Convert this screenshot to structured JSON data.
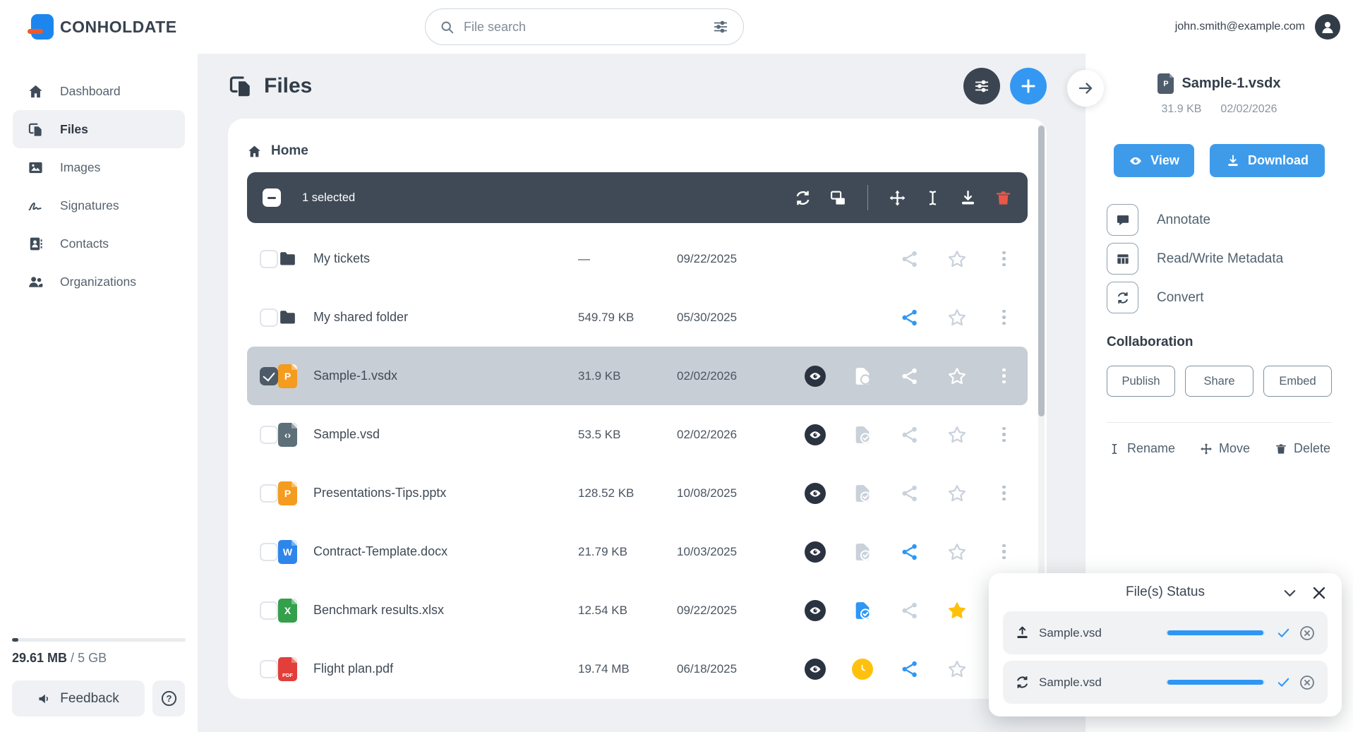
{
  "colors": {
    "accent_blue": "#3498f3",
    "button_blue": "#3e9bea",
    "toolbar_dark": "#3f4a56",
    "selected_row": "#c7ced5",
    "danger_red": "#e8584a",
    "star_yellow": "#ffc107",
    "progress_blue": "#2e96f5"
  },
  "header": {
    "logo_text": "CONHOLDATE",
    "search_placeholder": "File search",
    "user_email": "john.smith@example.com"
  },
  "sidebar": {
    "items": [
      {
        "label": "Dashboard",
        "icon": "home",
        "active": false
      },
      {
        "label": "Files",
        "icon": "files",
        "active": true
      },
      {
        "label": "Images",
        "icon": "images",
        "active": false
      },
      {
        "label": "Signatures",
        "icon": "signatures",
        "active": false
      },
      {
        "label": "Contacts",
        "icon": "contacts",
        "active": false
      },
      {
        "label": "Organizations",
        "icon": "organizations",
        "active": false
      }
    ],
    "storage": {
      "used": "29.61 MB",
      "divider": " / ",
      "total": "5 GB"
    },
    "feedback_label": "Feedback"
  },
  "main": {
    "title": "Files",
    "breadcrumb": "Home",
    "selection_toolbar": {
      "selected_text": "1 selected",
      "icons": [
        "refresh",
        "duplicate",
        "divider",
        "move",
        "rename",
        "download",
        "trash"
      ]
    },
    "files": [
      {
        "name": "My tickets",
        "kind": "folder",
        "size": "—",
        "date": "09/22/2025",
        "selected": false,
        "checked": false,
        "eye": false,
        "status": "none",
        "share": "muted",
        "starred": false
      },
      {
        "name": "My shared folder",
        "kind": "folder",
        "size": "549.79 KB",
        "date": "05/30/2025",
        "selected": false,
        "checked": false,
        "eye": false,
        "status": "none",
        "share": "active",
        "starred": false
      },
      {
        "name": "Sample-1.vsdx",
        "kind": "file",
        "badge_letter": "P",
        "badge_color": "#f39c1f",
        "size": "31.9 KB",
        "date": "02/02/2026",
        "selected": true,
        "checked": true,
        "eye": true,
        "status": "check",
        "share": "muted",
        "starred": false
      },
      {
        "name": "Sample.vsd",
        "kind": "file",
        "badge_letter": "‹›",
        "badge_color": "#5d7079",
        "size": "53.5 KB",
        "date": "02/02/2026",
        "selected": false,
        "checked": false,
        "eye": true,
        "status": "check",
        "share": "muted",
        "starred": false
      },
      {
        "name": "Presentations-Tips.pptx",
        "kind": "file",
        "badge_letter": "P",
        "badge_color": "#f39c1f",
        "size": "128.52 KB",
        "date": "10/08/2025",
        "selected": false,
        "checked": false,
        "eye": true,
        "status": "check",
        "share": "muted",
        "starred": false
      },
      {
        "name": "Contract-Template.docx",
        "kind": "file",
        "badge_letter": "W",
        "badge_color": "#2e86eb",
        "size": "21.79 KB",
        "date": "10/03/2025",
        "selected": false,
        "checked": false,
        "eye": true,
        "status": "check",
        "share": "active",
        "starred": false
      },
      {
        "name": "Benchmark results.xlsx",
        "kind": "file",
        "badge_letter": "X",
        "badge_color": "#34a04c",
        "size": "12.54 KB",
        "date": "09/22/2025",
        "selected": false,
        "checked": false,
        "eye": true,
        "status": "check-active",
        "share": "muted",
        "starred": true
      },
      {
        "name": "Flight plan.pdf",
        "kind": "file",
        "badge_letter": "PDF",
        "badge_color": "#e23e3a",
        "size": "19.74 MB",
        "date": "06/18/2025",
        "selected": false,
        "checked": false,
        "eye": true,
        "status": "clock",
        "share": "active",
        "starred": false
      }
    ]
  },
  "details_panel": {
    "file_name": "Sample-1.vsdx",
    "badge_letter": "P",
    "size": "31.9 KB",
    "date": "02/02/2026",
    "view_label": "View",
    "download_label": "Download",
    "actions": [
      {
        "icon": "comment",
        "label": "Annotate"
      },
      {
        "icon": "table",
        "label": "Read/Write Metadata"
      },
      {
        "icon": "refresh",
        "label": "Convert"
      }
    ],
    "collaboration_title": "Collaboration",
    "collab_buttons": [
      "Publish",
      "Share",
      "Embed"
    ],
    "footer_actions": [
      {
        "icon": "rename",
        "label": "Rename"
      },
      {
        "icon": "move",
        "label": "Move"
      },
      {
        "icon": "trash",
        "label": "Delete"
      }
    ]
  },
  "status_panel": {
    "title": "File(s) Status",
    "rows": [
      {
        "icon": "upload",
        "name": "Sample.vsd",
        "progress": 100
      },
      {
        "icon": "refresh",
        "name": "Sample.vsd",
        "progress": 100
      }
    ]
  }
}
